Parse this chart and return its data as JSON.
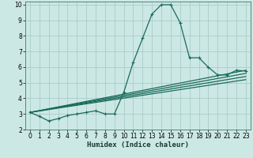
{
  "title": "",
  "xlabel": "Humidex (Indice chaleur)",
  "ylabel": "",
  "bg_color": "#cce8e4",
  "grid_color": "#aaccc8",
  "line_color": "#1a6b5a",
  "xlim": [
    -0.5,
    23.5
  ],
  "ylim": [
    2,
    10.2
  ],
  "xticks": [
    0,
    1,
    2,
    3,
    4,
    5,
    6,
    7,
    8,
    9,
    10,
    11,
    12,
    13,
    14,
    15,
    16,
    17,
    18,
    19,
    20,
    21,
    22,
    23
  ],
  "yticks": [
    2,
    3,
    4,
    5,
    6,
    7,
    8,
    9,
    10
  ],
  "main_series_x": [
    0,
    1,
    2,
    3,
    4,
    5,
    6,
    7,
    8,
    9,
    10,
    11,
    12,
    13,
    14,
    15,
    16,
    17,
    18,
    19,
    20,
    21,
    22,
    23
  ],
  "main_series_y": [
    3.1,
    2.85,
    2.55,
    2.7,
    2.9,
    3.0,
    3.1,
    3.2,
    3.0,
    3.0,
    4.4,
    6.3,
    7.85,
    9.4,
    10.0,
    10.0,
    8.85,
    6.6,
    6.6,
    6.0,
    5.5,
    5.5,
    5.8,
    5.75
  ],
  "trend_lines": [
    {
      "x": [
        0,
        23
      ],
      "y": [
        3.1,
        5.2
      ]
    },
    {
      "x": [
        0,
        23
      ],
      "y": [
        3.1,
        5.4
      ]
    },
    {
      "x": [
        0,
        23
      ],
      "y": [
        3.1,
        5.6
      ]
    },
    {
      "x": [
        0,
        23
      ],
      "y": [
        3.1,
        5.8
      ]
    }
  ],
  "xlabel_fontsize": 6.5,
  "xlabel_color": "#1a3a30",
  "tick_fontsize": 5.5,
  "line_width": 0.9
}
